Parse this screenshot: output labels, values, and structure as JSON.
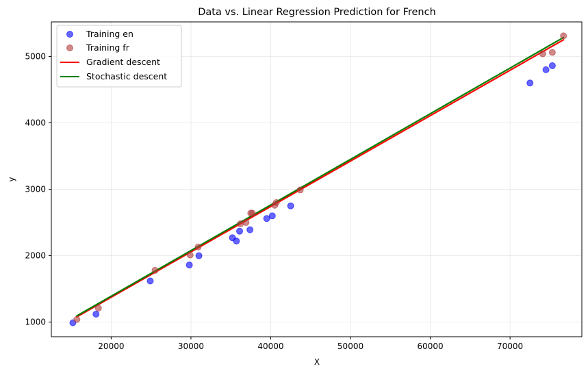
{
  "chart_data": {
    "type": "scatter",
    "title": "Data vs. Linear Regression Prediction for French",
    "xlabel": "X",
    "ylabel": "y",
    "xlim": [
      12500,
      79000
    ],
    "ylim": [
      780,
      5520
    ],
    "xticks": [
      20000,
      30000,
      40000,
      50000,
      60000,
      70000
    ],
    "yticks": [
      1000,
      2000,
      3000,
      4000,
      5000
    ],
    "grid": true,
    "legend_position": "top-left",
    "scatter_series": [
      {
        "name": "Training en",
        "color": "#0000ff",
        "points": [
          [
            15200,
            990
          ],
          [
            18100,
            1120
          ],
          [
            24900,
            1620
          ],
          [
            29800,
            1860
          ],
          [
            31000,
            2000
          ],
          [
            35200,
            2270
          ],
          [
            35700,
            2220
          ],
          [
            36100,
            2370
          ],
          [
            37400,
            2390
          ],
          [
            39500,
            2560
          ],
          [
            40200,
            2600
          ],
          [
            42500,
            2750
          ],
          [
            72500,
            4600
          ],
          [
            74500,
            4800
          ],
          [
            75300,
            4860
          ]
        ]
      },
      {
        "name": "Training fr",
        "color": "#b03a3a",
        "points": [
          [
            15700,
            1040
          ],
          [
            18400,
            1210
          ],
          [
            25500,
            1780
          ],
          [
            29900,
            2010
          ],
          [
            30900,
            2130
          ],
          [
            36200,
            2480
          ],
          [
            36900,
            2500
          ],
          [
            37500,
            2640
          ],
          [
            37700,
            2640
          ],
          [
            40500,
            2760
          ],
          [
            40700,
            2800
          ],
          [
            43700,
            2990
          ],
          [
            74100,
            5040
          ],
          [
            75300,
            5060
          ],
          [
            76700,
            5310
          ]
        ]
      }
    ],
    "line_series": [
      {
        "name": "Gradient descent",
        "color": "#ff0000",
        "points": [
          [
            15700,
            1080
          ],
          [
            76700,
            5250
          ]
        ]
      },
      {
        "name": "Stochastic descent",
        "color": "#008000",
        "points": [
          [
            15700,
            1095
          ],
          [
            76700,
            5285
          ]
        ]
      }
    ]
  }
}
